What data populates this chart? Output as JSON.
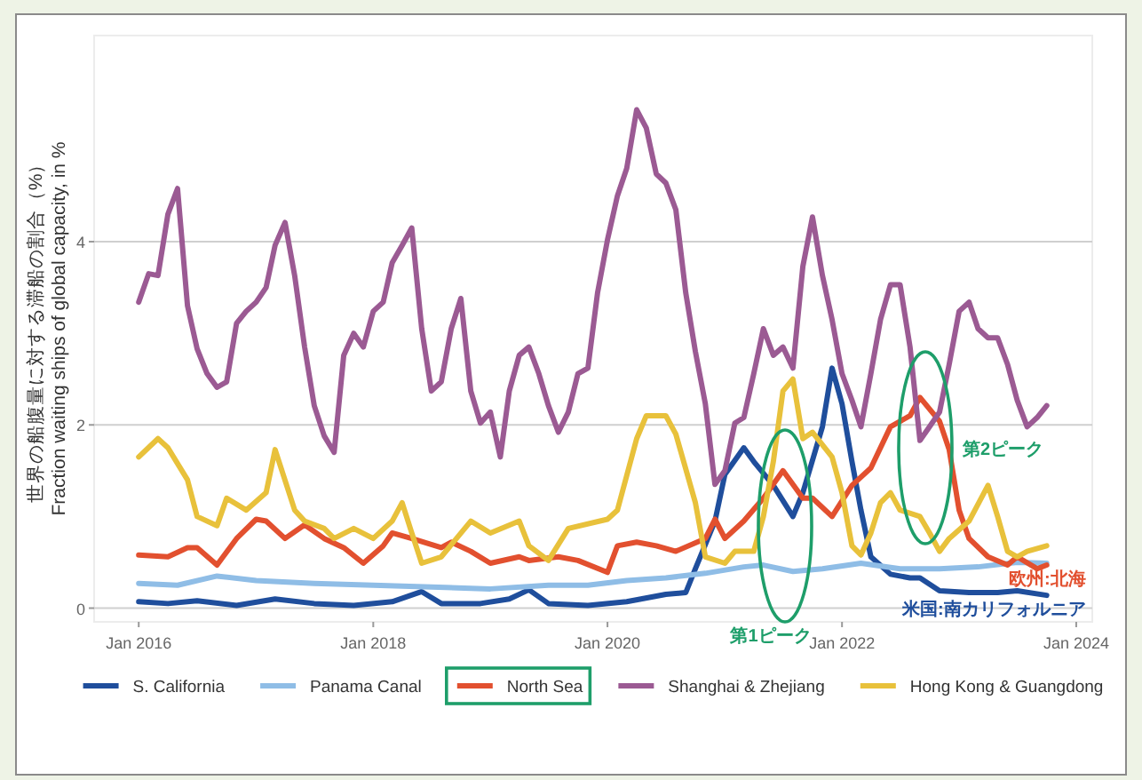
{
  "chart_data": {
    "type": "line",
    "ylabel": "世界の船腹量に対する滞船の割合（%）\nFraction waiting ships of global capacity, in %",
    "xlim": [
      "2015-08-15",
      "2024-02-20"
    ],
    "xticks": [
      {
        "value": "2016-01",
        "label": "Jan 2016"
      },
      {
        "value": "2018-01",
        "label": "Jan 2018"
      },
      {
        "value": "2020-01",
        "label": "Jan 2020"
      },
      {
        "value": "2022-01",
        "label": "Jan 2022"
      },
      {
        "value": "2024-01",
        "label": "Jan 2024"
      }
    ],
    "ylim": [
      -0.15,
      6.25
    ],
    "yticks": [
      0,
      2,
      4
    ],
    "grid": "y",
    "legend": "bottom",
    "series": [
      {
        "name": "S. California",
        "color": "#1f4e9c",
        "x": [
          "2016-01",
          "2016-04",
          "2016-07",
          "2016-11",
          "2017-03",
          "2017-07",
          "2017-11",
          "2018-03",
          "2018-06",
          "2018-08",
          "2018-12",
          "2019-03",
          "2019-05",
          "2019-07",
          "2019-11",
          "2020-03",
          "2020-07",
          "2020-09",
          "2020-10",
          "2020-12",
          "2021-01",
          "2021-03",
          "2021-04",
          "2021-06",
          "2021-08",
          "2021-09",
          "2021-11",
          "2021-12",
          "2022-01",
          "2022-02",
          "2022-03",
          "2022-04",
          "2022-06",
          "2022-08",
          "2022-09",
          "2022-11",
          "2023-02",
          "2023-05",
          "2023-07",
          "2023-10"
        ],
        "values": [
          0.07,
          0.05,
          0.08,
          0.03,
          0.1,
          0.05,
          0.03,
          0.07,
          0.18,
          0.05,
          0.05,
          0.1,
          0.2,
          0.05,
          0.03,
          0.07,
          0.15,
          0.17,
          0.43,
          0.95,
          1.46,
          1.75,
          1.6,
          1.34,
          1.0,
          1.26,
          1.98,
          2.62,
          2.23,
          1.6,
          1.07,
          0.56,
          0.37,
          0.33,
          0.33,
          0.19,
          0.17,
          0.17,
          0.19,
          0.14
        ]
      },
      {
        "name": "Panama Canal",
        "color": "#8fbde6",
        "x": [
          "2016-01",
          "2016-05",
          "2016-09",
          "2017-01",
          "2017-07",
          "2018-01",
          "2018-07",
          "2019-01",
          "2019-07",
          "2019-11",
          "2020-03",
          "2020-07",
          "2020-11",
          "2021-03",
          "2021-05",
          "2021-08",
          "2021-11",
          "2022-03",
          "2022-07",
          "2022-11",
          "2023-03",
          "2023-07",
          "2023-10"
        ],
        "values": [
          0.27,
          0.25,
          0.35,
          0.3,
          0.27,
          0.25,
          0.23,
          0.21,
          0.25,
          0.25,
          0.3,
          0.33,
          0.38,
          0.45,
          0.47,
          0.4,
          0.43,
          0.49,
          0.43,
          0.43,
          0.45,
          0.5,
          0.49
        ]
      },
      {
        "name": "North Sea",
        "color": "#e2502f",
        "x": [
          "2016-01",
          "2016-04",
          "2016-06",
          "2016-07",
          "2016-09",
          "2016-11",
          "2017-01",
          "2017-02",
          "2017-04",
          "2017-06",
          "2017-08",
          "2017-10",
          "2017-12",
          "2018-02",
          "2018-03",
          "2018-05",
          "2018-08",
          "2018-09",
          "2018-11",
          "2019-01",
          "2019-04",
          "2019-05",
          "2019-08",
          "2019-10",
          "2020-01",
          "2020-02",
          "2020-04",
          "2020-06",
          "2020-08",
          "2020-11",
          "2020-12",
          "2021-01",
          "2021-03",
          "2021-05",
          "2021-07",
          "2021-09",
          "2021-10",
          "2021-12",
          "2022-02",
          "2022-04",
          "2022-06",
          "2022-08",
          "2022-09",
          "2022-11",
          "2022-12",
          "2023-01",
          "2023-02",
          "2023-04",
          "2023-06",
          "2023-07",
          "2023-09",
          "2023-10"
        ],
        "values": [
          0.58,
          0.56,
          0.66,
          0.66,
          0.47,
          0.76,
          0.97,
          0.95,
          0.76,
          0.91,
          0.76,
          0.66,
          0.49,
          0.68,
          0.82,
          0.76,
          0.66,
          0.72,
          0.62,
          0.49,
          0.56,
          0.52,
          0.56,
          0.52,
          0.39,
          0.68,
          0.72,
          0.68,
          0.62,
          0.76,
          0.97,
          0.76,
          0.95,
          1.2,
          1.5,
          1.2,
          1.2,
          1.0,
          1.34,
          1.53,
          1.98,
          2.1,
          2.3,
          2.04,
          1.73,
          1.07,
          0.76,
          0.56,
          0.47,
          0.56,
          0.43,
          0.47
        ]
      },
      {
        "name": "Shanghai & Zhejiang",
        "color": "#9b5a93",
        "x": [
          "2016-01",
          "2016-02",
          "2016-03",
          "2016-04",
          "2016-05",
          "2016-06",
          "2016-07",
          "2016-08",
          "2016-09",
          "2016-10",
          "2016-11",
          "2016-12",
          "2017-01",
          "2017-02",
          "2017-03",
          "2017-04",
          "2017-05",
          "2017-06",
          "2017-07",
          "2017-08",
          "2017-09",
          "2017-10",
          "2017-11",
          "2017-12",
          "2018-01",
          "2018-02",
          "2018-03",
          "2018-04",
          "2018-05",
          "2018-06",
          "2018-07",
          "2018-08",
          "2018-09",
          "2018-10",
          "2018-11",
          "2018-12",
          "2019-01",
          "2019-02",
          "2019-03",
          "2019-04",
          "2019-05",
          "2019-06",
          "2019-07",
          "2019-08",
          "2019-09",
          "2019-10",
          "2019-11",
          "2019-12",
          "2020-01",
          "2020-02",
          "2020-03",
          "2020-04",
          "2020-05",
          "2020-06",
          "2020-07",
          "2020-08",
          "2020-09",
          "2020-10",
          "2020-11",
          "2020-12",
          "2021-01",
          "2021-02",
          "2021-03",
          "2021-04",
          "2021-05",
          "2021-06",
          "2021-07",
          "2021-08",
          "2021-09",
          "2021-10",
          "2021-11",
          "2021-12",
          "2022-01",
          "2022-02",
          "2022-03",
          "2022-04",
          "2022-05",
          "2022-06",
          "2022-07",
          "2022-08",
          "2022-09",
          "2022-10",
          "2022-11",
          "2022-12",
          "2023-01",
          "2023-02",
          "2023-03",
          "2023-04",
          "2023-05",
          "2023-06",
          "2023-07",
          "2023-08",
          "2023-09",
          "2023-10"
        ],
        "values": [
          3.34,
          3.65,
          3.63,
          4.3,
          4.58,
          3.3,
          2.83,
          2.56,
          2.41,
          2.47,
          3.11,
          3.24,
          3.34,
          3.5,
          3.96,
          4.21,
          3.63,
          2.85,
          2.21,
          1.88,
          1.7,
          2.76,
          3.0,
          2.85,
          3.24,
          3.34,
          3.77,
          3.96,
          4.15,
          3.05,
          2.37,
          2.47,
          3.05,
          3.38,
          2.37,
          2.02,
          2.14,
          1.65,
          2.37,
          2.76,
          2.85,
          2.56,
          2.21,
          1.92,
          2.14,
          2.56,
          2.62,
          3.44,
          4.02,
          4.5,
          4.8,
          5.44,
          5.24,
          4.74,
          4.64,
          4.35,
          3.44,
          2.8,
          2.23,
          1.35,
          1.5,
          2.02,
          2.08,
          2.56,
          3.05,
          2.76,
          2.85,
          2.62,
          3.73,
          4.27,
          3.63,
          3.15,
          2.56,
          2.27,
          1.98,
          2.56,
          3.15,
          3.53,
          3.53,
          2.85,
          1.83,
          1.98,
          2.14,
          2.66,
          3.24,
          3.34,
          3.05,
          2.95,
          2.95,
          2.66,
          2.27,
          1.98,
          2.08,
          2.21
        ]
      },
      {
        "name": "Hong Kong & Guangdong",
        "color": "#e8c13b",
        "x": [
          "2016-01",
          "2016-03",
          "2016-04",
          "2016-06",
          "2016-07",
          "2016-09",
          "2016-10",
          "2016-12",
          "2017-02",
          "2017-03",
          "2017-05",
          "2017-06",
          "2017-08",
          "2017-09",
          "2017-11",
          "2018-01",
          "2018-03",
          "2018-04",
          "2018-05",
          "2018-06",
          "2018-08",
          "2018-11",
          "2019-01",
          "2019-04",
          "2019-05",
          "2019-07",
          "2019-09",
          "2020-01",
          "2020-02",
          "2020-04",
          "2020-05",
          "2020-07",
          "2020-08",
          "2020-10",
          "2020-11",
          "2021-01",
          "2021-02",
          "2021-04",
          "2021-05",
          "2021-06",
          "2021-07",
          "2021-08",
          "2021-09",
          "2021-10",
          "2021-12",
          "2022-01",
          "2022-02",
          "2022-03",
          "2022-04",
          "2022-05",
          "2022-06",
          "2022-07",
          "2022-09",
          "2022-10",
          "2022-11",
          "2022-12",
          "2023-02",
          "2023-04",
          "2023-05",
          "2023-06",
          "2023-07",
          "2023-08",
          "2023-10"
        ],
        "values": [
          1.65,
          1.85,
          1.75,
          1.4,
          1.0,
          0.9,
          1.2,
          1.07,
          1.26,
          1.73,
          1.07,
          0.95,
          0.87,
          0.76,
          0.87,
          0.76,
          0.95,
          1.15,
          0.82,
          0.49,
          0.56,
          0.95,
          0.82,
          0.95,
          0.68,
          0.52,
          0.87,
          0.97,
          1.07,
          1.85,
          2.1,
          2.1,
          1.9,
          1.15,
          0.56,
          0.49,
          0.62,
          0.62,
          1.0,
          1.6,
          2.37,
          2.5,
          1.85,
          1.92,
          1.65,
          1.26,
          0.68,
          0.58,
          0.82,
          1.15,
          1.26,
          1.07,
          1.0,
          0.82,
          0.62,
          0.76,
          0.95,
          1.34,
          1.0,
          0.62,
          0.56,
          0.62,
          0.68
        ]
      }
    ],
    "annotations": [
      "第1ピーク",
      "第2ピーク",
      {
        "text": "欧州:北海",
        "x": "2023-10",
        "y": 0.47
      },
      {
        "text": "米国:南カリフォルニア",
        "x": "2023-10",
        "y": 0.14
      }
    ]
  }
}
